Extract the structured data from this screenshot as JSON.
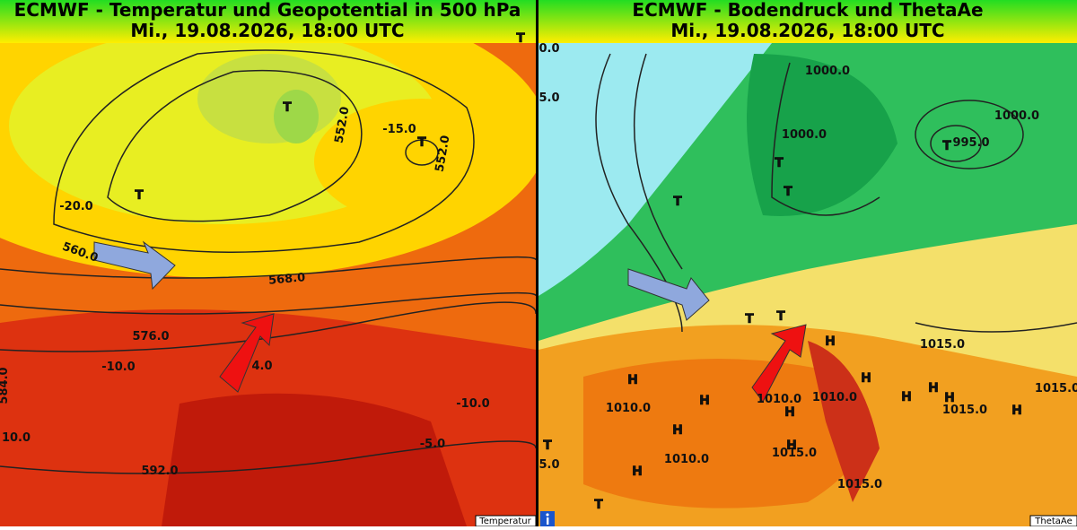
{
  "panels": [
    {
      "title": "ECMWF - Temperatur und Geopotential in 500 hPa",
      "date": "Mi., 19.08.2026, 18:00 UTC",
      "legend": "Temperatur",
      "labels": [
        "552.0",
        "552.0",
        "-15.0",
        "-20.0",
        "560.0",
        "568.0",
        "576.0",
        "-10.0",
        "4.0",
        "584.0",
        "10.0",
        "592.0",
        "-5.0",
        "-10.0",
        "T",
        "T",
        "T",
        "T"
      ]
    },
    {
      "title": "ECMWF - Bodendruck und ThetaAe",
      "date": "Mi., 19.08.2026, 18:00 UTC",
      "legend": "ThetaAe",
      "labels": [
        "0.0",
        "5.0",
        "1000.0",
        "1000.0",
        "1000.0",
        "995.0",
        "1015.0",
        "1010.0",
        "1010.0",
        "1010.0",
        "1015.0",
        "1015.0",
        "1015.0",
        "1010.0",
        "1015.0",
        "5.0",
        "T",
        "T",
        "T",
        "T",
        "T",
        "T",
        "T",
        "T",
        "H",
        "H",
        "H",
        "H",
        "H",
        "H",
        "H",
        "H",
        "H",
        "H",
        "H",
        "H"
      ]
    }
  ]
}
